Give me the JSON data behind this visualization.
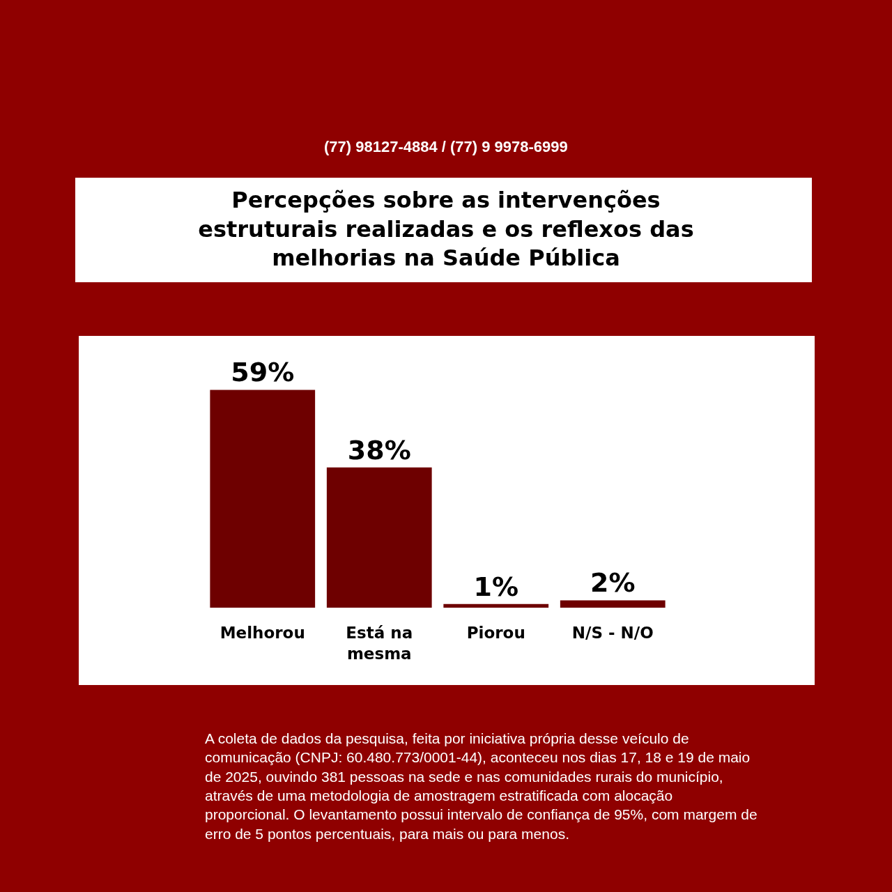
{
  "chart_data": {
    "type": "bar",
    "title": "Percepções sobre as intervenções estruturais realizadas e os reflexos das melhorias na Saúde Pública",
    "categories": [
      "Melhorou",
      "Está na mesma",
      "Piorou",
      "N/S - N/O"
    ],
    "values": [
      59,
      38,
      1,
      2
    ],
    "color": "#6e0000",
    "value_labels": [
      "59%",
      "38%",
      "1%",
      "2%"
    ],
    "tick_labels": "x",
    "annotations": [
      "(77) 98127-4884 / (77) 9 9978-6999",
      "A coleta de dados da pesquisa, feita por iniciativa própria desse veículo de comunicação (CNPJ: 60.480.773/0001-44), aconteceu nos dias 17, 18 e 19 de maio de 2025, ouvindo 381 pessoas na sede e nas comunidades rurais do município, através de uma metodologia de amostragem estratificada com alocação proporcional. O levantamento possui intervalo de confiança de 95%, com margem de erro de 5 pontos percentuais, para mais ou para menos."
    ]
  }
}
